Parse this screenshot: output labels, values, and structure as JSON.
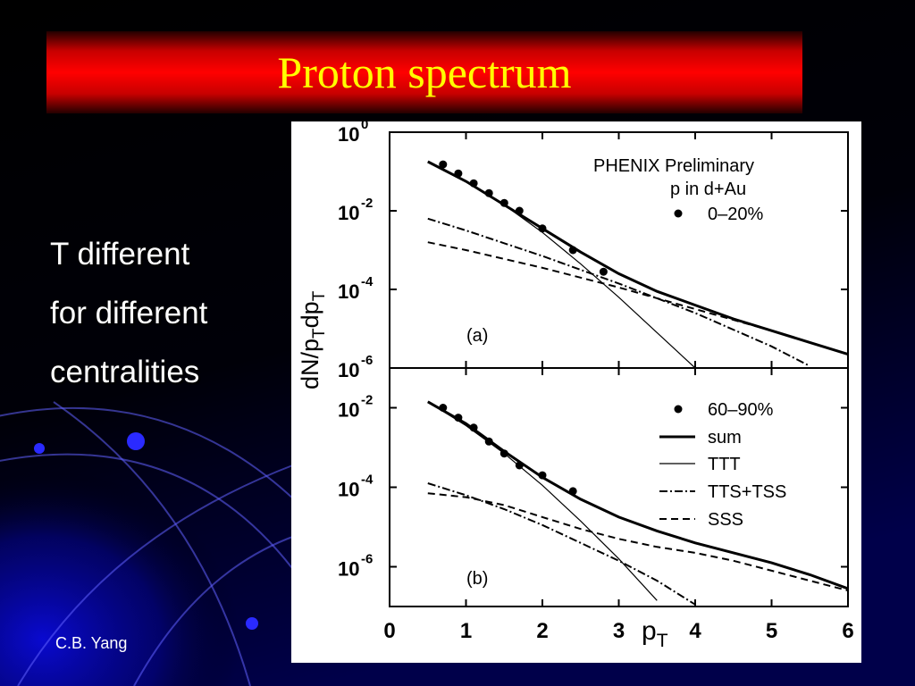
{
  "slide": {
    "title": "Proton spectrum",
    "bullets": [
      "T different",
      "for different",
      "centralities"
    ],
    "author": "C.B. Yang",
    "colors": {
      "banner": "#ff0000",
      "title_text": "#ffff00",
      "background": "#000000",
      "decor": "#0a0ad8"
    }
  },
  "chart_data": [
    {
      "type": "line",
      "panel_label": "(a)",
      "annotations": [
        "PHENIX Preliminary",
        "p in d+Au"
      ],
      "ylabel": "dN/p_T dp_T",
      "xlim": [
        0,
        6
      ],
      "ylim_log10": [
        -6,
        0
      ],
      "y_scale": "log",
      "y_ticks": [
        {
          "mantissa": "10",
          "exponent": "0"
        },
        {
          "mantissa": "10",
          "exponent": "-2"
        },
        {
          "mantissa": "10",
          "exponent": "-4"
        },
        {
          "mantissa": "10",
          "exponent": "-6"
        }
      ],
      "legend": {
        "placement": "top-right",
        "entries": [
          "0–20%"
        ]
      },
      "points": [
        {
          "x": 0.7,
          "log10y": -0.82
        },
        {
          "x": 0.9,
          "log10y": -1.05
        },
        {
          "x": 1.1,
          "log10y": -1.3
        },
        {
          "x": 1.3,
          "log10y": -1.55
        },
        {
          "x": 1.5,
          "log10y": -1.8
        },
        {
          "x": 1.7,
          "log10y": -2.0
        },
        {
          "x": 2.0,
          "log10y": -2.45
        },
        {
          "x": 2.4,
          "log10y": -3.0
        },
        {
          "x": 2.8,
          "log10y": -3.55
        }
      ],
      "series": [
        {
          "style": "thick",
          "x": [
            0.5,
            1.0,
            1.5,
            2.0,
            2.5,
            3.0,
            3.5,
            4.0,
            4.5,
            5.0,
            5.5,
            6.0
          ],
          "log10y": [
            -0.75,
            -1.25,
            -1.85,
            -2.45,
            -3.05,
            -3.6,
            -4.05,
            -4.4,
            -4.75,
            -5.05,
            -5.35,
            -5.65
          ]
        },
        {
          "style": "thin",
          "x": [
            0.5,
            1.0,
            1.5,
            2.0,
            2.5,
            3.0,
            3.5,
            4.0
          ],
          "log10y": [
            -0.75,
            -1.25,
            -1.85,
            -2.55,
            -3.35,
            -4.2,
            -5.1,
            -6.0
          ]
        },
        {
          "style": "dashdot",
          "x": [
            0.5,
            1.0,
            2.0,
            3.0,
            4.0,
            5.0,
            5.5
          ],
          "log10y": [
            -2.2,
            -2.5,
            -3.15,
            -3.85,
            -4.6,
            -5.45,
            -5.95
          ]
        },
        {
          "style": "dashed",
          "x": [
            0.5,
            1.0,
            2.0,
            3.0,
            4.0,
            5.0,
            6.0
          ],
          "log10y": [
            -2.8,
            -3.0,
            -3.45,
            -3.95,
            -4.5,
            -5.05,
            -5.65
          ]
        }
      ]
    },
    {
      "type": "line",
      "panel_label": "(b)",
      "xlabel": "p_T",
      "xlim": [
        0,
        6
      ],
      "ylim_log10": [
        -7,
        -1
      ],
      "y_scale": "log",
      "x_ticks": [
        "0",
        "1",
        "2",
        "3",
        "4",
        "5",
        "6"
      ],
      "y_ticks": [
        {
          "mantissa": "10",
          "exponent": "-2"
        },
        {
          "mantissa": "10",
          "exponent": "-4"
        },
        {
          "mantissa": "10",
          "exponent": "-6"
        }
      ],
      "legend": {
        "placement": "top-right",
        "entries": [
          "60–90%",
          "sum",
          "TTT",
          "TTS+TSS",
          "SSS"
        ]
      },
      "points": [
        {
          "x": 0.7,
          "log10y": -2.0
        },
        {
          "x": 0.9,
          "log10y": -2.25
        },
        {
          "x": 1.1,
          "log10y": -2.5
        },
        {
          "x": 1.3,
          "log10y": -2.85
        },
        {
          "x": 1.5,
          "log10y": -3.15
        },
        {
          "x": 1.7,
          "log10y": -3.45
        },
        {
          "x": 2.0,
          "log10y": -3.7
        },
        {
          "x": 2.4,
          "log10y": -4.1
        }
      ],
      "series": [
        {
          "style": "thick",
          "x": [
            0.5,
            1.0,
            1.5,
            2.0,
            2.5,
            3.0,
            3.5,
            4.0,
            4.5,
            5.0,
            5.5,
            6.0
          ],
          "log10y": [
            -1.85,
            -2.4,
            -3.1,
            -3.75,
            -4.3,
            -4.75,
            -5.1,
            -5.4,
            -5.65,
            -5.9,
            -6.2,
            -6.55
          ]
        },
        {
          "style": "thin",
          "x": [
            0.5,
            1.0,
            1.5,
            2.0,
            2.5,
            3.0,
            3.5
          ],
          "log10y": [
            -1.85,
            -2.45,
            -3.15,
            -3.95,
            -4.85,
            -5.8,
            -6.85
          ]
        },
        {
          "style": "dashdot",
          "x": [
            0.5,
            1.0,
            1.5,
            2.0,
            2.5,
            3.0,
            3.5,
            4.0
          ],
          "log10y": [
            -3.9,
            -4.2,
            -4.55,
            -4.95,
            -5.4,
            -5.85,
            -6.35,
            -6.95
          ]
        },
        {
          "style": "dashed",
          "x": [
            0.5,
            1.0,
            1.5,
            2.0,
            2.5,
            3.0,
            3.5,
            4.0,
            4.5,
            5.0,
            5.5,
            6.0
          ],
          "log10y": [
            -4.15,
            -4.25,
            -4.45,
            -4.75,
            -5.05,
            -5.3,
            -5.5,
            -5.65,
            -5.85,
            -6.1,
            -6.35,
            -6.6
          ]
        }
      ]
    }
  ]
}
